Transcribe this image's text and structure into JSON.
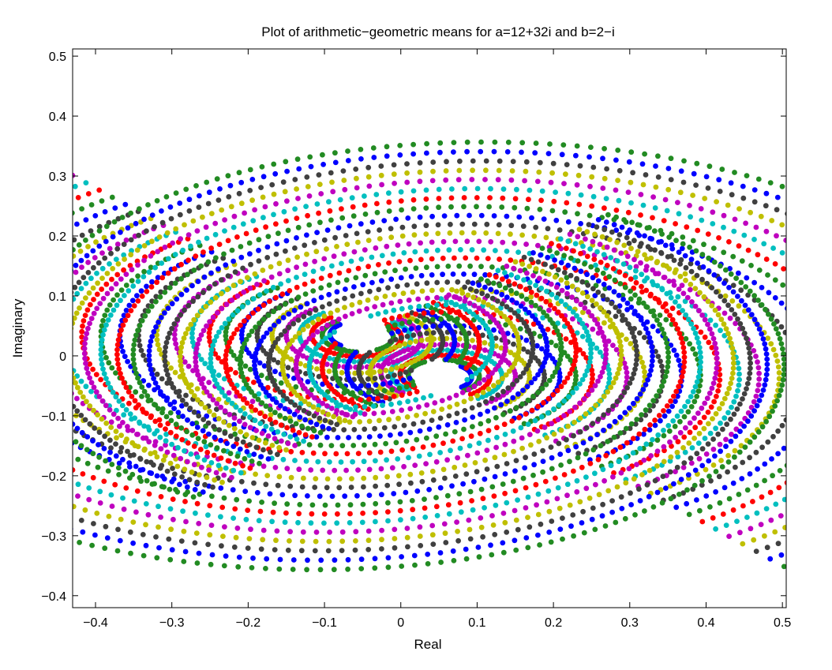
{
  "chart_data": {
    "type": "scatter",
    "title": "Plot of arithmetic−geometric means for a=12+32i and b=2−i",
    "xlabel": "Real",
    "ylabel": "Imaginary",
    "xlim": [
      -0.43,
      0.505
    ],
    "ylim": [
      -0.42,
      0.512
    ],
    "xticks": [
      -0.4,
      -0.3,
      -0.2,
      -0.1,
      0,
      0.1,
      0.2,
      0.3,
      0.4,
      0.5
    ],
    "xtick_labels": [
      "−0.4",
      "−0.3",
      "−0.2",
      "−0.1",
      "0",
      "0.1",
      "0.2",
      "0.3",
      "0.4",
      "0.5"
    ],
    "yticks": [
      -0.4,
      -0.3,
      -0.2,
      -0.1,
      0,
      0.1,
      0.2,
      0.3,
      0.4,
      0.5
    ],
    "ytick_labels": [
      "−0.4",
      "−0.3",
      "−0.2",
      "−0.1",
      "0",
      "0.1",
      "0.2",
      "0.3",
      "0.4",
      "0.5"
    ],
    "grid": false,
    "legend": "none",
    "series_colors": [
      "#0000ff",
      "#228b22",
      "#ff0000",
      "#00bfbf",
      "#bf00bf",
      "#bfbf00",
      "#404040"
    ],
    "pattern": {
      "description_free": true,
      "centers": [
        [
          -0.05,
          0.035
        ],
        [
          0.05,
          -0.035
        ]
      ],
      "ring_count": 30,
      "max_radius": 0.72
    }
  }
}
